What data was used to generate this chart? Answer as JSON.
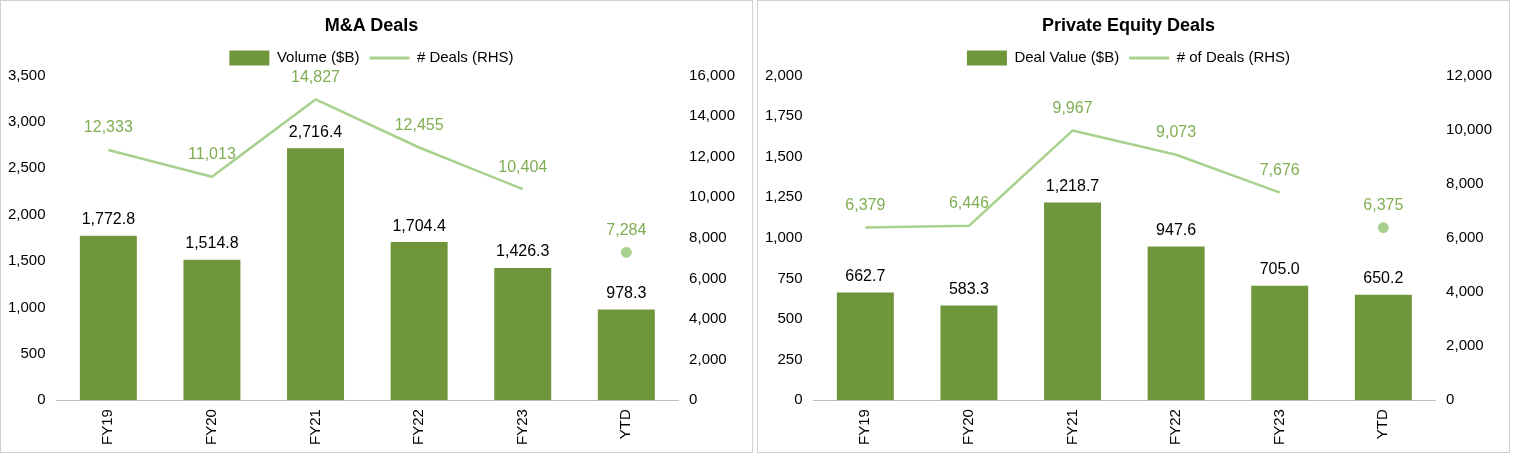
{
  "chart_data": [
    {
      "type": "bar",
      "title": "M&A Deals",
      "categories": [
        "FY19",
        "FY20",
        "FY21",
        "FY22",
        "FY23",
        "YTD"
      ],
      "legend": "top",
      "series": [
        {
          "name": "Volume ($B)",
          "color": "#70963c",
          "values": [
            1772.8,
            1514.8,
            2716.4,
            1704.4,
            1426.3,
            978.3
          ],
          "value_labels": [
            "1,772.8",
            "1,514.8",
            "2,716.4",
            "1,704.4",
            "1,426.3",
            "978.3"
          ]
        },
        {
          "name": "# Deals (RHS)",
          "type": "line",
          "axis": "y2",
          "marker": "none",
          "color": "#a9d18e",
          "values": [
            12333,
            11013,
            14827,
            12455,
            10404,
            null
          ],
          "value_labels": [
            "12,333",
            "11,013",
            "14,827",
            "12,455",
            "10,404",
            null
          ]
        },
        {
          "type": "scatter",
          "axis": "y2",
          "marker": "circle",
          "color": "#a9d18e",
          "values": [
            null,
            null,
            null,
            null,
            null,
            7284
          ],
          "value_labels": [
            null,
            null,
            null,
            null,
            null,
            "7,284"
          ]
        }
      ],
      "ylim": [
        0,
        3500
      ],
      "yticks": [
        0,
        500,
        {
          "value": 1000,
          "label": "1,000"
        },
        {
          "value": 1500,
          "label": "1,500"
        },
        {
          "value": 2000,
          "label": "2,000"
        },
        {
          "value": 2500,
          "label": "2,500"
        },
        {
          "value": 3000,
          "label": "3,000"
        },
        {
          "value": 3500,
          "label": "3,500"
        }
      ],
      "y2lim": [
        0,
        16000
      ],
      "y2ticks": [
        0,
        {
          "value": 2000,
          "label": "2,000"
        },
        {
          "value": 4000,
          "label": "4,000"
        },
        {
          "value": 6000,
          "label": "6,000"
        },
        {
          "value": 8000,
          "label": "8,000"
        },
        {
          "value": 10000,
          "label": "10,000"
        },
        {
          "value": 12000,
          "label": "12,000"
        },
        {
          "value": 14000,
          "label": "14,000"
        },
        {
          "value": 16000,
          "label": "16,000"
        }
      ]
    },
    {
      "type": "bar",
      "title": "Private Equity Deals",
      "categories": [
        "FY19",
        "FY20",
        "FY21",
        "FY22",
        "FY23",
        "YTD"
      ],
      "legend": "top",
      "series": [
        {
          "name": "Deal Value ($B)",
          "color": "#70963c",
          "values": [
            662.7,
            583.3,
            1218.7,
            947.6,
            705.0,
            650.2
          ],
          "value_labels": [
            "662.7",
            "583.3",
            "1,218.7",
            "947.6",
            "705.0",
            "650.2"
          ]
        },
        {
          "name": "# of Deals (RHS)",
          "type": "line",
          "axis": "y2",
          "marker": "none",
          "color": "#a9d18e",
          "values": [
            6379,
            6446,
            9967,
            9073,
            7676,
            null
          ],
          "value_labels": [
            "6,379",
            "6,446",
            "9,967",
            "9,073",
            "7,676",
            null
          ]
        },
        {
          "type": "scatter",
          "axis": "y2",
          "marker": "circle",
          "color": "#a9d18e",
          "values": [
            null,
            null,
            null,
            null,
            null,
            6375
          ],
          "value_labels": [
            null,
            null,
            null,
            null,
            null,
            "6,375"
          ]
        }
      ],
      "ylim": [
        0,
        2000
      ],
      "yticks": [
        0,
        250,
        500,
        750,
        {
          "value": 1000,
          "label": "1,000"
        },
        {
          "value": 1250,
          "label": "1,250"
        },
        {
          "value": 1500,
          "label": "1,500"
        },
        {
          "value": 1750,
          "label": "1,750"
        },
        {
          "value": 2000,
          "label": "2,000"
        }
      ],
      "y2lim": [
        0,
        12000
      ],
      "y2ticks": [
        0,
        {
          "value": 2000,
          "label": "2,000"
        },
        {
          "value": 4000,
          "label": "4,000"
        },
        {
          "value": 6000,
          "label": "6,000"
        },
        {
          "value": 8000,
          "label": "8,000"
        },
        {
          "value": 10000,
          "label": "10,000"
        },
        {
          "value": 12000,
          "label": "12,000"
        }
      ]
    }
  ]
}
